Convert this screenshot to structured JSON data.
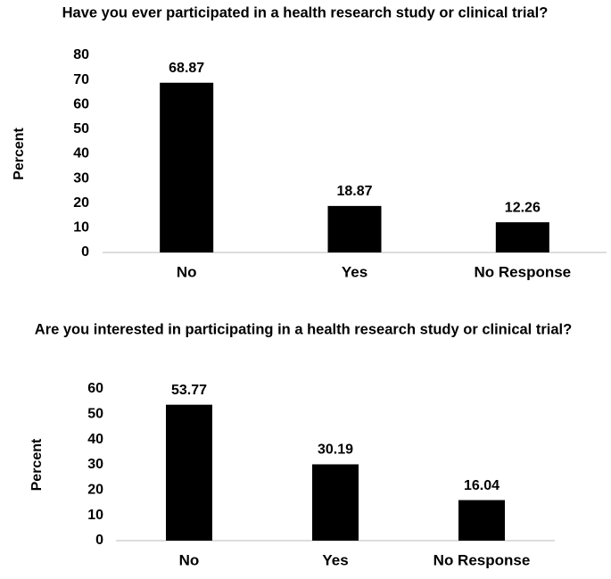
{
  "chart_data": [
    {
      "type": "bar",
      "title": "Have you ever participated in a health research study or clinical trial?",
      "y_label": "Percent",
      "categories": [
        "No",
        "Yes",
        "No Response"
      ],
      "values": [
        68.87,
        18.87,
        12.26
      ],
      "color": "#000000",
      "ylim": [
        0,
        80
      ],
      "yticks": [
        0,
        10,
        20,
        30,
        40,
        50,
        60,
        70,
        80
      ],
      "grid": false
    },
    {
      "type": "bar",
      "title": "Are you interested in participating in a health research study or clinical trial?",
      "y_label": "Percent",
      "categories": [
        "No",
        "Yes",
        "No Response"
      ],
      "values": [
        53.77,
        30.19,
        16.04
      ],
      "color": "#000000",
      "ylim": [
        0,
        60
      ],
      "yticks": [
        0,
        10,
        20,
        30,
        40,
        50,
        60
      ],
      "grid": false
    }
  ]
}
